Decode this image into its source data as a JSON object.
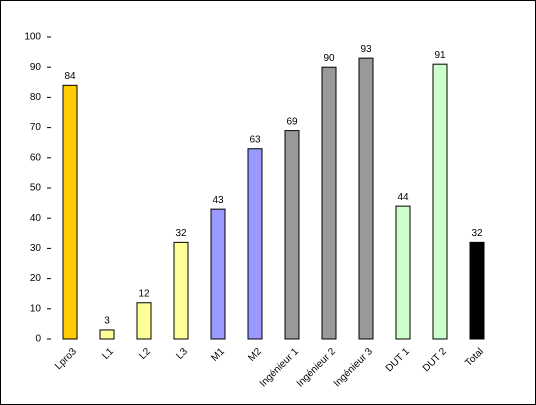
{
  "chart_data": {
    "type": "bar",
    "categories": [
      "Lpro3",
      "L1",
      "L2",
      "L3",
      "M1",
      "M2",
      "Ingénieur 1",
      "Ingénieur 2",
      "Ingénieur 3",
      "DUT 1",
      "DUT 2",
      "Total"
    ],
    "values": [
      84,
      3,
      12,
      32,
      43,
      63,
      69,
      90,
      93,
      44,
      91,
      32
    ],
    "colors": [
      "#ffcc00",
      "#ffff99",
      "#ffff99",
      "#ffff99",
      "#9999ff",
      "#9999ff",
      "#999999",
      "#999999",
      "#999999",
      "#ccffcc",
      "#ccffcc",
      "#000000"
    ],
    "ylim": [
      0,
      100
    ],
    "yticks": [
      0,
      10,
      20,
      30,
      40,
      50,
      60,
      70,
      80,
      90,
      100
    ]
  }
}
